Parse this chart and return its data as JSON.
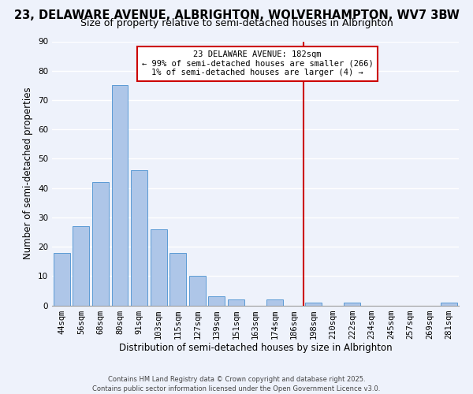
{
  "title": "23, DELAWARE AVENUE, ALBRIGHTON, WOLVERHAMPTON, WV7 3BW",
  "subtitle": "Size of property relative to semi-detached houses in Albrighton",
  "xlabel": "Distribution of semi-detached houses by size in Albrighton",
  "ylabel": "Number of semi-detached properties",
  "bar_labels": [
    "44sqm",
    "56sqm",
    "68sqm",
    "80sqm",
    "91sqm",
    "103sqm",
    "115sqm",
    "127sqm",
    "139sqm",
    "151sqm",
    "163sqm",
    "174sqm",
    "186sqm",
    "198sqm",
    "210sqm",
    "222sqm",
    "234sqm",
    "245sqm",
    "257sqm",
    "269sqm",
    "281sqm"
  ],
  "bar_heights": [
    18,
    27,
    42,
    75,
    46,
    26,
    18,
    10,
    3,
    2,
    0,
    2,
    0,
    1,
    0,
    1,
    0,
    0,
    0,
    0,
    1
  ],
  "bar_color": "#aec6e8",
  "bar_edge_color": "#5b9bd5",
  "ylim": [
    0,
    90
  ],
  "yticks": [
    0,
    10,
    20,
    30,
    40,
    50,
    60,
    70,
    80,
    90
  ],
  "vline_x_index": 12.5,
  "vline_color": "#cc0000",
  "annotation_title": "23 DELAWARE AVENUE: 182sqm",
  "annotation_line1": "← 99% of semi-detached houses are smaller (266)",
  "annotation_line2": "1% of semi-detached houses are larger (4) →",
  "annotation_box_color": "#cc0000",
  "footer1": "Contains HM Land Registry data © Crown copyright and database right 2025.",
  "footer2": "Contains public sector information licensed under the Open Government Licence v3.0.",
  "background_color": "#eef2fb",
  "grid_color": "#ffffff",
  "title_fontsize": 10.5,
  "subtitle_fontsize": 9,
  "axis_label_fontsize": 8.5,
  "tick_fontsize": 7.5,
  "footer_fontsize": 6.0
}
